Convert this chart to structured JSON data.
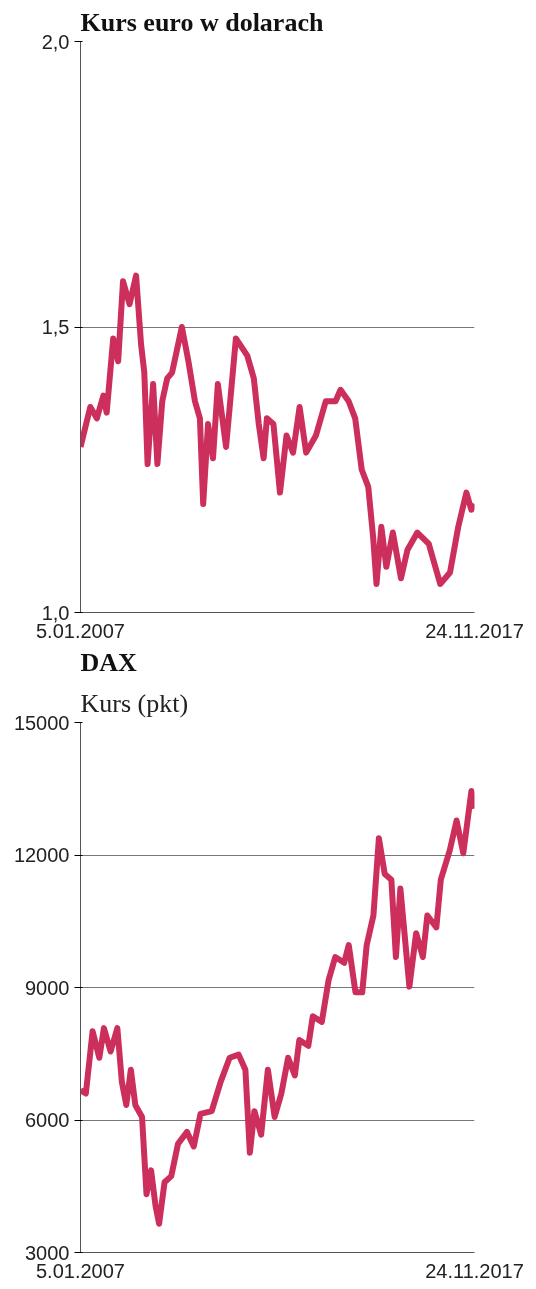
{
  "chart_data": [
    {
      "type": "line",
      "title": "Kurs euro w dolarach",
      "x": [
        "2007-01-05",
        "2007-04-14",
        "2007-06-19",
        "2007-08-24",
        "2007-09-26",
        "2007-12-01",
        "2008-01-20",
        "2008-03-09",
        "2008-05-14",
        "2008-07-19",
        "2008-09-07",
        "2008-10-10",
        "2008-11-12",
        "2009-01-07",
        "2009-02-19",
        "2009-04-09",
        "2009-05-29",
        "2009-07-17",
        "2009-10-24",
        "2009-12-29",
        "2010-03-05",
        "2010-04-24",
        "2010-05-27",
        "2010-07-15",
        "2010-09-03",
        "2010-10-22",
        "2011-01-13",
        "2011-04-22",
        "2011-08-15",
        "2011-10-20",
        "2011-12-09",
        "2012-01-27",
        "2012-02-29",
        "2012-05-05",
        "2012-07-10",
        "2012-09-14",
        "2012-11-19",
        "2013-01-24",
        "2013-03-31",
        "2013-07-08",
        "2013-10-15",
        "2014-01-22",
        "2014-03-13",
        "2014-06-03",
        "2014-08-08",
        "2014-10-13",
        "2014-12-18",
        "2015-02-06",
        "2015-03-11",
        "2015-04-29",
        "2015-06-18",
        "2015-08-23",
        "2015-11-13",
        "2016-01-18",
        "2016-04-26",
        "2016-08-20",
        "2016-11-10",
        "2016-12-13",
        "2017-03-22",
        "2017-06-13",
        "2017-09-03",
        "2017-10-23",
        "2017-11-24"
      ],
      "series": [
        {
          "color": "#cc2f5c",
          "values": [
            1.29,
            1.36,
            1.34,
            1.38,
            1.35,
            1.48,
            1.44,
            1.58,
            1.54,
            1.59,
            1.47,
            1.42,
            1.26,
            1.4,
            1.26,
            1.37,
            1.41,
            1.42,
            1.5,
            1.44,
            1.37,
            1.34,
            1.19,
            1.33,
            1.27,
            1.4,
            1.29,
            1.48,
            1.45,
            1.41,
            1.33,
            1.27,
            1.34,
            1.33,
            1.21,
            1.31,
            1.28,
            1.36,
            1.28,
            1.31,
            1.37,
            1.37,
            1.39,
            1.37,
            1.34,
            1.25,
            1.22,
            1.13,
            1.05,
            1.15,
            1.08,
            1.14,
            1.06,
            1.11,
            1.14,
            1.12,
            1.07,
            1.05,
            1.07,
            1.15,
            1.21,
            1.18,
            1.19
          ]
        }
      ],
      "xlim": [
        "2007-01-05",
        "2017-11-24"
      ],
      "xticks": [
        {
          "value": "2007-01-05",
          "label": "5.01.2007"
        },
        {
          "value": "2017-11-24",
          "label": "24.11.2017"
        }
      ],
      "ylim": [
        1.0,
        2.0
      ],
      "yticks": [
        {
          "value": 1.0,
          "label": "1,0"
        },
        {
          "value": 1.5,
          "label": "1,5"
        },
        {
          "value": 2.0,
          "label": "2,0"
        }
      ],
      "grid": "y"
    },
    {
      "type": "line",
      "title": "DAX",
      "subtitle": "Kurs (pkt)",
      "x": [
        "2007-01-05",
        "2007-02-28",
        "2007-05-07",
        "2007-07-14",
        "2007-08-29",
        "2007-11-05",
        "2008-01-12",
        "2008-02-26",
        "2008-04-11",
        "2008-05-27",
        "2008-07-11",
        "2008-09-17",
        "2008-11-01",
        "2008-12-17",
        "2009-01-31",
        "2009-03-08",
        "2009-05-02",
        "2009-07-09",
        "2009-09-15",
        "2009-12-15",
        "2010-02-21",
        "2010-04-30",
        "2010-08-21",
        "2010-11-20",
        "2011-02-18",
        "2011-05-20",
        "2011-07-27",
        "2011-09-10",
        "2011-10-26",
        "2012-01-02",
        "2012-03-10",
        "2012-05-17",
        "2012-07-24",
        "2012-09-30",
        "2012-12-07",
        "2013-01-21",
        "2013-04-22",
        "2013-06-06",
        "2013-09-05",
        "2013-11-12",
        "2014-01-19",
        "2014-04-19",
        "2014-06-04",
        "2014-08-11",
        "2014-10-18",
        "2014-12-02",
        "2015-02-08",
        "2015-04-04",
        "2015-06-02",
        "2015-08-08",
        "2015-09-23",
        "2015-11-07",
        "2016-02-06",
        "2016-04-14",
        "2016-06-21",
        "2016-08-05",
        "2016-11-04",
        "2016-12-19",
        "2017-03-20",
        "2017-05-27",
        "2017-08-03",
        "2017-10-24",
        "2017-11-24"
      ],
      "series": [
        {
          "color": "#cc2f5c",
          "values": [
            6670,
            6600,
            8010,
            7410,
            8080,
            7550,
            8080,
            6870,
            6340,
            7140,
            6340,
            6070,
            4320,
            4860,
            4060,
            3650,
            4590,
            4730,
            5460,
            5730,
            5400,
            6140,
            6200,
            6870,
            7410,
            7480,
            7140,
            5260,
            6200,
            5670,
            7140,
            6070,
            6600,
            7410,
            7010,
            7810,
            7680,
            8350,
            8220,
            9160,
            9690,
            9560,
            9960,
            8890,
            8890,
            9960,
            10630,
            12380,
            11570,
            11440,
            9690,
            11240,
            9020,
            10230,
            9690,
            10630,
            10360,
            11440,
            12110,
            12780,
            12040,
            13450,
            13050
          ]
        }
      ],
      "xlim": [
        "2007-01-05",
        "2017-11-24"
      ],
      "xticks": [
        {
          "value": "2007-01-05",
          "label": "5.01.2007"
        },
        {
          "value": "2017-11-24",
          "label": "24.11.2017"
        }
      ],
      "ylim": [
        3000,
        15000
      ],
      "yticks": [
        3000,
        6000,
        9000,
        12000,
        15000
      ],
      "grid": "y"
    }
  ]
}
